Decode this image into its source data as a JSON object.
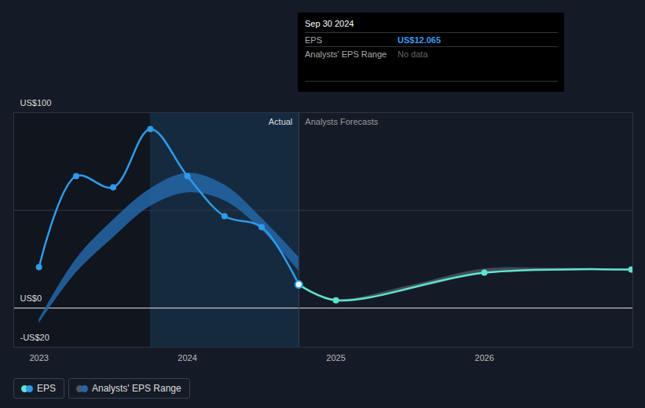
{
  "chart_data": {
    "type": "line",
    "xlim": [
      2022.83,
      2027.0
    ],
    "xticks": [
      2023,
      2024,
      2025,
      2026
    ],
    "ylim": [
      -20,
      100
    ],
    "yticks": [
      {
        "value": -20,
        "label": "-US$20"
      },
      {
        "value": 0,
        "label": "US$0"
      },
      {
        "value": 100,
        "label": "US$100"
      }
    ],
    "minor_yticks": [
      50
    ],
    "grid": true,
    "legend": "bottom-left",
    "shaded_x": [
      2023.75,
      2024.75
    ],
    "annotations": {
      "actual": "Actual",
      "forecast": "Analysts Forecasts"
    },
    "tooltip": {
      "title": "Sep 30 2024",
      "rows": [
        [
          "EPS",
          "US$12.065"
        ],
        [
          "Analysts' EPS Range",
          "No data"
        ]
      ]
    },
    "series": [
      {
        "name": "EPS",
        "color": "#2e9bea",
        "forecast_color": "#5fe3cf",
        "marker": "circle",
        "actual_end": 2024.75,
        "x": [
          2023.0,
          2023.25,
          2023.5,
          2023.75,
          2024.0,
          2024.25,
          2024.5,
          2024.75,
          2025.0,
          2026.0,
          2026.99
        ],
        "values": [
          20.9,
          67.5,
          61.8,
          91.6,
          67.5,
          47.0,
          41.4,
          12.065,
          4.0,
          18.1,
          19.7
        ]
      },
      {
        "name": "Analysts' EPS Range",
        "type": "area",
        "color": "#2466a8",
        "forecast_color": "#4a5a63",
        "actual": {
          "x": [
            2023.0,
            2023.25,
            2023.5,
            2023.75,
            2024.0,
            2024.25,
            2024.5,
            2024.75
          ],
          "low": [
            -8,
            18,
            36,
            52,
            59,
            55,
            40,
            19
          ],
          "high": [
            -6,
            25,
            45,
            61,
            69,
            63,
            46,
            26
          ]
        },
        "forecast": {
          "x": [
            2024.75,
            2025.0,
            2025.5,
            2026.0,
            2026.5,
            2026.99
          ],
          "low": [
            12.065,
            4.0,
            9.5,
            17.5,
            19.0,
            19.5
          ],
          "high": [
            12.065,
            4.5,
            11.5,
            20.0,
            20.3,
            20.0
          ]
        }
      }
    ]
  }
}
